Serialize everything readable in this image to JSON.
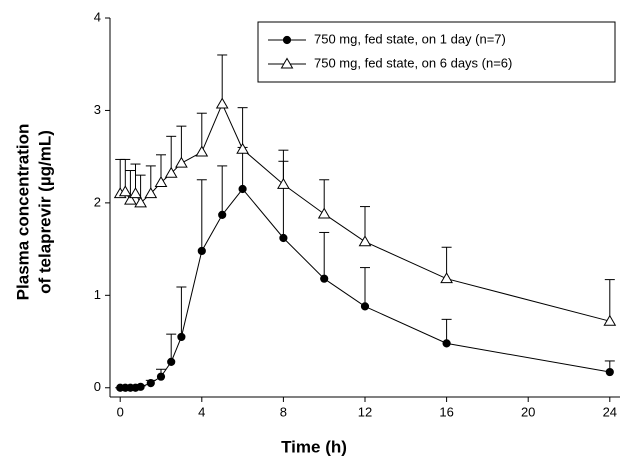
{
  "chart_data": {
    "type": "line",
    "x_label": "Time (h)",
    "y_label": [
      "Plasma concentration",
      "of telaprevir (µg/mL)"
    ],
    "x": [
      0,
      0.25,
      0.5,
      0.75,
      1,
      1.5,
      2,
      2.5,
      3,
      4,
      5,
      6,
      8,
      10,
      12,
      16,
      24
    ],
    "series": [
      {
        "name": "750 mg, fed state, on 1 day (n=7)",
        "color": "#000000",
        "marker": "filled-circle",
        "values": [
          0,
          0,
          0,
          0,
          0.01,
          0.05,
          0.12,
          0.28,
          0.55,
          1.48,
          1.87,
          2.15,
          1.62,
          1.18,
          0.88,
          0.48,
          0.17
        ],
        "errors": [
          0,
          0,
          0,
          0,
          0.01,
          0.03,
          0.08,
          0.3,
          0.54,
          0.77,
          0.53,
          0.45,
          0.83,
          0.5,
          0.42,
          0.26,
          0.12
        ]
      },
      {
        "name": "750 mg, fed state, on 6 days (n=6)",
        "color": "#000000",
        "marker": "open-triangle",
        "values": [
          2.1,
          2.12,
          2.03,
          2.1,
          2.0,
          2.1,
          2.22,
          2.32,
          2.43,
          2.55,
          3.07,
          2.58,
          2.2,
          1.88,
          1.58,
          1.18,
          0.72
        ],
        "errors": [
          0.37,
          0.35,
          0.32,
          0.32,
          0.3,
          0.3,
          0.3,
          0.4,
          0.4,
          0.42,
          0.53,
          0.45,
          0.37,
          0.37,
          0.38,
          0.34,
          0.45
        ]
      }
    ],
    "xlim": [
      -0.5,
      24.5
    ],
    "xticks": [
      0,
      4,
      8,
      12,
      16,
      20,
      24
    ],
    "ylim": [
      -0.1,
      4
    ],
    "yticks": [
      0,
      1,
      2,
      3,
      4
    ],
    "legend": "upper right"
  }
}
